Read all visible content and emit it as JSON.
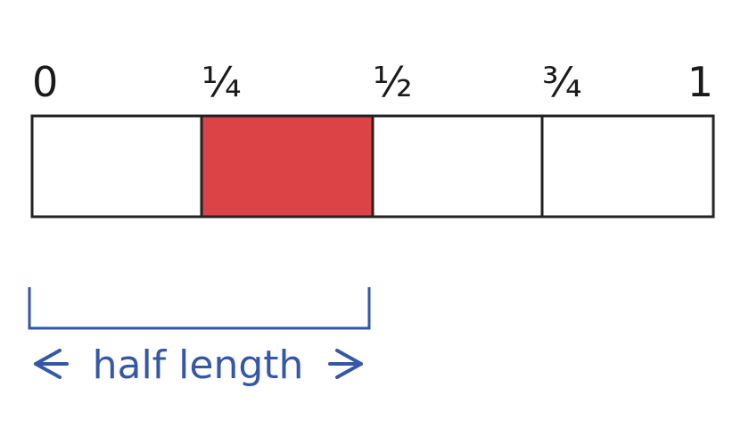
{
  "number_line": {
    "labels": [
      "0",
      "¼",
      "½",
      "¾",
      "1"
    ],
    "segments": 4,
    "shaded_segment": 2,
    "shaded_range": [
      "¼",
      "½"
    ],
    "colors": {
      "shaded": "#dc4346",
      "outline": "#222222",
      "caption": "#3557a8"
    }
  },
  "bracket": {
    "caption": "half length"
  }
}
